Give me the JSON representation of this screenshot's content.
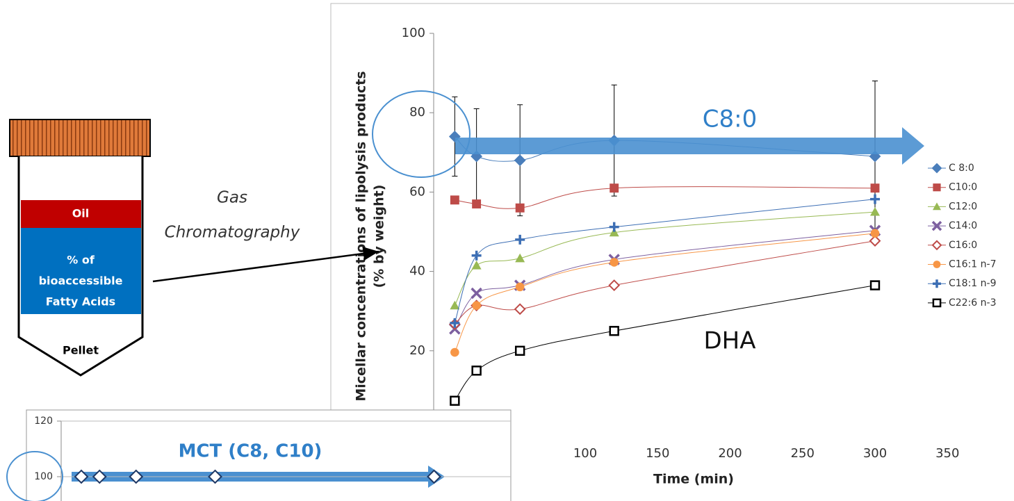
{
  "diagram": {
    "tube": {
      "oil": "Oil",
      "fraction": [
        "% of",
        "bioaccessible",
        "Fatty Acids"
      ],
      "pellet": "Pellet"
    },
    "method": [
      "Gas",
      "Chromatography"
    ]
  },
  "chart_data": [
    {
      "type": "line",
      "y_label": [
        "Micellar concentrations of lipolysis products",
        "(% by weight)"
      ],
      "x_label": "Time (min)",
      "annotations": [
        "C8:0",
        "DHA"
      ],
      "xlim": [
        0,
        350
      ],
      "xticks": [
        100,
        150,
        200,
        250,
        300,
        350
      ],
      "ylim": [
        0,
        100
      ],
      "yticks": [
        20,
        40,
        60,
        80,
        100
      ],
      "legend": "right",
      "x": [
        10,
        25,
        55,
        120,
        300
      ],
      "series": [
        {
          "name": "C 8:0",
          "color": "#4a7ebb",
          "marker": "diamond",
          "values": [
            74,
            69,
            68,
            73,
            69
          ],
          "errors": [
            10,
            12,
            14,
            14,
            19
          ]
        },
        {
          "name": "C10:0",
          "color": "#be4b48",
          "marker": "square",
          "values": [
            58,
            57,
            56,
            61,
            61
          ]
        },
        {
          "name": "C12:0",
          "color": "#98b954",
          "marker": "triangle",
          "values": [
            31.4,
            41.5,
            43.3,
            49.8,
            55
          ]
        },
        {
          "name": "C14:0",
          "color": "#7d60a0",
          "marker": "x",
          "values": [
            25.5,
            34.5,
            36.5,
            43,
            50.3
          ]
        },
        {
          "name": "C16:0",
          "color": "#be4b48",
          "marker": "diamond-open",
          "values": [
            26.7,
            31.4,
            30.5,
            36.5,
            47.7
          ]
        },
        {
          "name": "C16:1 n-7",
          "color": "#f79646",
          "marker": "circle",
          "values": [
            19.6,
            31.4,
            36.1,
            42.3,
            49.6
          ]
        },
        {
          "name": "C18:1 n-9",
          "color": "#3c6eb4",
          "marker": "plus",
          "values": [
            27,
            44,
            48,
            51.2,
            58.2
          ]
        },
        {
          "name": "C22:6 n-3",
          "color": "#000000",
          "marker": "square-open",
          "values": [
            7.4,
            15,
            20,
            25,
            36.5
          ]
        }
      ]
    },
    {
      "type": "line",
      "annotations": [
        "MCT (C8, C10)"
      ],
      "xlim": [
        0,
        350
      ],
      "ylim": [
        90,
        120
      ],
      "yticks": [
        100,
        120
      ],
      "x": [
        10,
        25,
        55,
        120,
        300
      ],
      "series": [
        {
          "color": "#1f3864",
          "marker": "diamond-open",
          "values": [
            100,
            100,
            100,
            100,
            100
          ]
        }
      ]
    }
  ]
}
